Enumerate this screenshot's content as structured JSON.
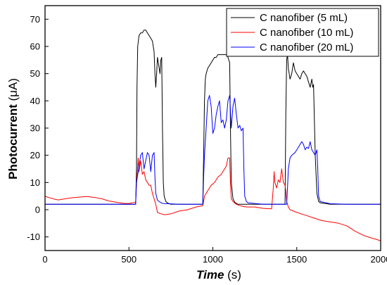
{
  "chart_data": {
    "type": "line",
    "xlabel": {
      "main": "Time",
      "unit": " (s)"
    },
    "ylabel": {
      "main": "Photocurrent",
      "unit": " (μA)"
    },
    "xlim": [
      0,
      2000
    ],
    "ylim": [
      -15,
      75
    ],
    "xticks": [
      0,
      500,
      1000,
      1500,
      2000
    ],
    "yticks": [
      -10,
      0,
      10,
      20,
      30,
      40,
      50,
      60,
      70
    ],
    "grid": false,
    "legend_position": "top-right",
    "series": [
      {
        "name": "C nanofiber (5 mL)",
        "color": "#000000",
        "x": [
          0,
          540,
          545,
          548,
          552,
          560,
          570,
          580,
          590,
          600,
          610,
          620,
          630,
          640,
          650,
          655,
          660,
          665,
          670,
          680,
          685,
          690,
          695,
          700,
          705,
          710,
          720,
          730,
          740,
          750,
          800,
          900,
          940,
          945,
          950,
          955,
          960,
          970,
          980,
          990,
          1000,
          1010,
          1020,
          1030,
          1040,
          1050,
          1060,
          1070,
          1080,
          1090,
          1100,
          1105,
          1110,
          1120,
          1130,
          1140,
          1150,
          1200,
          1300,
          1400,
          1430,
          1435,
          1440,
          1445,
          1450,
          1460,
          1470,
          1480,
          1490,
          1500,
          1510,
          1520,
          1530,
          1540,
          1550,
          1560,
          1570,
          1580,
          1590,
          1595,
          1600,
          1610,
          1620,
          1630,
          1640,
          1700,
          1800,
          1900,
          2000
        ],
        "y": [
          2,
          2,
          15,
          45,
          60,
          64,
          65,
          65,
          66,
          66,
          65,
          64,
          63,
          62,
          58,
          50,
          45,
          50,
          56,
          52,
          50,
          55,
          56,
          30,
          10,
          5,
          3,
          2.5,
          2.2,
          2,
          2,
          2,
          2,
          20,
          40,
          48,
          50,
          52,
          53,
          54,
          55,
          56,
          56,
          57,
          57,
          57,
          57,
          57,
          57,
          56,
          54,
          30,
          10,
          4,
          2.8,
          2.3,
          2,
          2,
          2,
          2,
          2,
          35,
          55,
          57,
          52,
          48,
          50,
          54,
          51,
          50,
          49,
          48,
          50,
          51,
          50,
          49,
          47,
          45,
          48,
          45,
          46,
          20,
          6,
          3,
          2.5,
          2,
          2,
          2,
          2
        ]
      },
      {
        "name": "C nanofiber (10 mL)",
        "color": "#ff0000",
        "x": [
          0,
          20,
          40,
          60,
          80,
          100,
          120,
          140,
          160,
          180,
          200,
          220,
          240,
          260,
          280,
          300,
          320,
          340,
          360,
          380,
          400,
          420,
          440,
          460,
          480,
          500,
          520,
          540,
          545,
          550,
          555,
          560,
          570,
          580,
          590,
          600,
          610,
          620,
          630,
          640,
          650,
          660,
          670,
          690,
          710,
          720,
          750,
          800,
          850,
          900,
          940,
          945,
          950,
          960,
          970,
          980,
          990,
          1000,
          1010,
          1020,
          1030,
          1040,
          1050,
          1060,
          1070,
          1080,
          1090,
          1100,
          1105,
          1110,
          1120,
          1140,
          1160,
          1180,
          1200,
          1250,
          1300,
          1350,
          1360,
          1365,
          1370,
          1380,
          1390,
          1400,
          1410,
          1420,
          1430,
          1435,
          1440,
          1450,
          1460,
          1480,
          1500,
          1550,
          1600,
          1650,
          1700,
          1750,
          1800,
          1850,
          1900,
          1950,
          1980,
          2000
        ],
        "y": [
          5,
          4.5,
          4.2,
          3.8,
          3.6,
          3.8,
          4,
          4.2,
          4.4,
          4.5,
          4.6,
          4.7,
          4.8,
          4.8,
          4.6,
          4.5,
          4.2,
          4,
          3.6,
          3.2,
          3,
          2.8,
          2.6,
          2.4,
          2.3,
          2.3,
          2.5,
          2.8,
          10,
          14,
          19,
          14,
          18,
          13,
          14,
          11,
          10,
          9,
          9,
          6,
          4,
          2,
          -1,
          -1.5,
          -1.8,
          -1.8,
          -1.5,
          -0.5,
          0,
          1,
          1.5,
          3,
          5,
          6,
          7,
          8,
          9,
          9.5,
          10,
          11,
          12,
          12.5,
          13,
          14,
          15,
          16,
          19,
          19,
          10,
          4,
          3,
          2,
          1.5,
          1.2,
          1,
          1,
          0.5,
          0.3,
          8,
          14,
          10,
          8,
          11,
          10,
          15,
          10,
          9,
          7,
          3,
          1,
          0,
          -0.5,
          -1,
          -2,
          -3,
          -4,
          -4.5,
          -5,
          -6,
          -8,
          -9.5,
          -10.5,
          -11,
          -11.5
        ]
      },
      {
        "name": "C nanofiber (20 mL)",
        "color": "#0000ff",
        "x": [
          0,
          540,
          545,
          550,
          555,
          560,
          570,
          580,
          590,
          600,
          610,
          620,
          630,
          640,
          650,
          655,
          660,
          670,
          680,
          700,
          800,
          900,
          940,
          945,
          950,
          955,
          960,
          970,
          980,
          990,
          1000,
          1010,
          1020,
          1030,
          1040,
          1050,
          1060,
          1070,
          1080,
          1090,
          1100,
          1110,
          1120,
          1130,
          1140,
          1150,
          1160,
          1170,
          1180,
          1185,
          1190,
          1200,
          1210,
          1300,
          1400,
          1440,
          1445,
          1450,
          1460,
          1470,
          1480,
          1490,
          1500,
          1510,
          1520,
          1530,
          1540,
          1550,
          1560,
          1570,
          1580,
          1590,
          1600,
          1610,
          1620,
          1625,
          1630,
          1640,
          1700,
          1800,
          1900,
          2000
        ],
        "y": [
          2,
          2,
          10,
          12,
          14,
          16,
          20,
          21,
          15,
          18,
          21,
          20,
          14,
          20,
          21,
          12,
          6,
          3.5,
          3,
          2.3,
          2,
          2,
          2,
          12,
          20,
          25,
          30,
          40,
          42,
          38,
          28,
          30,
          35,
          38,
          40,
          32,
          33,
          30,
          33,
          40,
          42,
          30,
          38,
          41,
          35,
          30,
          31,
          29,
          30,
          15,
          5,
          3,
          2.5,
          2,
          2,
          2,
          8,
          15,
          19,
          20,
          20.5,
          21,
          22,
          23,
          24,
          25,
          24,
          22,
          23,
          22.5,
          25,
          22,
          21,
          20,
          22,
          15,
          5,
          3,
          2.2,
          2,
          2,
          2
        ]
      }
    ]
  }
}
